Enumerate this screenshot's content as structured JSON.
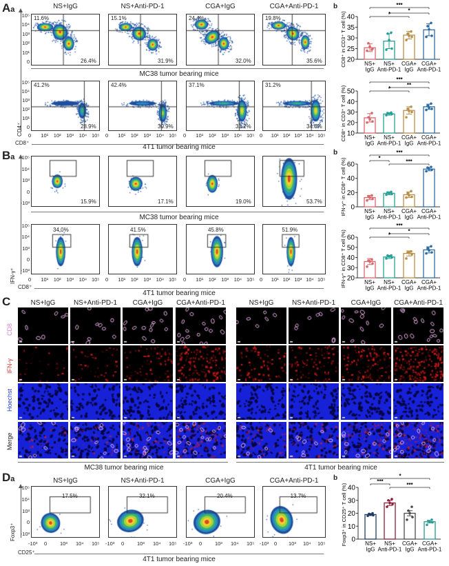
{
  "groups": [
    "NS+IgG",
    "NS+Anti-PD-1",
    "CGA+IgG",
    "CGA+Anti-PD-1"
  ],
  "panel_A": {
    "label": "A",
    "sub": "a",
    "b_label": "b",
    "y_axis": "CD4⁺",
    "x_axis": "CD8⁺",
    "y_ticks": [
      "10⁵",
      "10⁴",
      "10³",
      "10²",
      "10¹",
      "0"
    ],
    "x_ticks": [
      "0",
      "10¹",
      "10²",
      "10³",
      "10⁴",
      "10⁵"
    ],
    "rows": [
      {
        "caption": "MC38 tumor bearing mice",
        "upper_left": [
          "11.6%",
          "15.1%",
          "24.4%",
          "19.8%"
        ],
        "lower_right": [
          "26.4%",
          "31.9%",
          "32.0%",
          "35.6%"
        ]
      },
      {
        "caption": "4T1 tumor bearing mice",
        "upper_left": [
          "41.2%",
          "42.4%",
          "37.1%",
          "31.2%"
        ],
        "lower_right": [
          "28.9%",
          "30.9%",
          "33.2%",
          "34.6%"
        ]
      }
    ]
  },
  "panel_B": {
    "label": "B",
    "sub": "a",
    "b_label": "b",
    "y_axis": "IFN-γ⁺",
    "x_axis": "CD8⁺",
    "y_ticks": [
      "10⁵",
      "10⁴",
      "10³",
      "0",
      "-10³"
    ],
    "x_ticks": [
      "0",
      "10¹",
      "10²",
      "10³",
      "10⁴",
      "10⁵"
    ],
    "rows": [
      {
        "caption": "MC38 tumor bearing mice",
        "gate": [
          "15.9%",
          "17.1%",
          "19.0%",
          "53.7%"
        ]
      },
      {
        "caption": "4T1 tumor bearing mice",
        "gate": [
          "34.0%",
          "41.5%",
          "45.8%",
          "51.9%"
        ]
      }
    ]
  },
  "panel_C": {
    "label": "C",
    "rows": [
      "CD8",
      "IFN-γ",
      "Hoechst",
      "Merge"
    ],
    "row_colors": [
      "#d87fd0",
      "#d23a32",
      "#2b3fd6",
      "#222222"
    ],
    "captions": [
      "MC38 tumor bearing mice",
      "4T1 tumor bearing mice"
    ]
  },
  "panel_D": {
    "label": "D",
    "sub": "a",
    "b_label": "b",
    "y_axis": "Foxp3⁺",
    "x_axis": "CD25⁺",
    "y_ticks": [
      "10⁵",
      "10⁴",
      "10³",
      "0",
      "-10³"
    ],
    "x_ticks": [
      "-10³",
      "0",
      "10³",
      "10⁴",
      "10⁵"
    ],
    "caption": "4T1 tumor bearing mice",
    "gate": [
      "17.5%",
      "32.1%",
      "20.4%",
      "13.7%"
    ]
  },
  "chart_data": [
    {
      "type": "bar",
      "panel": "Ab-MC38",
      "ylabel": "CD8⁺ in CD3⁺ T cell (%)",
      "ylim": [
        20,
        40
      ],
      "yticks": [
        "20",
        "25",
        "30",
        "35",
        "40"
      ],
      "categories": [
        [
          "NS+",
          "IgG"
        ],
        [
          "NS+",
          "Anti-PD-1"
        ],
        [
          "CGA+",
          "IgG"
        ],
        [
          "CGA+",
          "Anti-PD-1"
        ]
      ],
      "colors": [
        "#d9676c",
        "#27a096",
        "#b98f47",
        "#2c6ca3"
      ],
      "values": [
        25.4,
        28.5,
        31.3,
        33.8
      ],
      "errors": [
        1.8,
        3.5,
        1.8,
        2.8
      ],
      "points": [
        [
          24,
          25,
          26,
          27.5,
          24.5
        ],
        [
          24.5,
          25,
          29,
          32,
          32.5
        ],
        [
          29,
          30.5,
          31,
          32,
          33
        ],
        [
          30.5,
          31,
          34,
          35.5,
          37
        ]
      ],
      "significance": [
        {
          "from": 0,
          "to": 3,
          "label": "***"
        },
        {
          "from": 1,
          "to": 3,
          "label": "*"
        },
        {
          "from": 0,
          "to": 2,
          "label": "*"
        }
      ]
    },
    {
      "type": "bar",
      "panel": "Ab-4T1",
      "ylabel": "CD8⁺ in CD3⁺ T cell (%)",
      "ylim": [
        10,
        50
      ],
      "yticks": [
        "10",
        "20",
        "30",
        "40",
        "50"
      ],
      "categories": [
        [
          "NS+",
          "IgG"
        ],
        [
          "NS+",
          "Anti-PD-1"
        ],
        [
          "CGA+",
          "IgG"
        ],
        [
          "CGA+",
          "Anti-PD-1"
        ]
      ],
      "colors": [
        "#d9676c",
        "#27a096",
        "#b98f47",
        "#2c6ca3"
      ],
      "values": [
        24.5,
        28.2,
        31.5,
        35.0
      ],
      "errors": [
        4,
        1.2,
        3.5,
        2.5
      ],
      "points": [
        [
          20,
          21,
          23,
          25,
          29
        ],
        [
          27,
          28,
          28.5,
          29,
          29.5
        ],
        [
          25,
          30,
          31,
          33,
          35
        ],
        [
          32,
          33,
          34,
          36,
          38
        ]
      ],
      "significance": [
        {
          "from": 0,
          "to": 3,
          "label": "***"
        },
        {
          "from": 1,
          "to": 3,
          "label": "**"
        },
        {
          "from": 0,
          "to": 2,
          "label": "*"
        }
      ]
    },
    {
      "type": "bar",
      "panel": "Bb-MC38",
      "ylabel": "IFN-γ⁺ in CD8⁺ T cell (%)",
      "ylim": [
        0,
        60
      ],
      "yticks": [
        "0",
        "20",
        "40",
        "60"
      ],
      "categories": [
        [
          "NS+",
          "IgG"
        ],
        [
          "NS+",
          "Anti-PD-1"
        ],
        [
          "CGA+",
          "IgG"
        ],
        [
          "CGA+",
          "Anti-PD-1"
        ]
      ],
      "colors": [
        "#d9676c",
        "#27a096",
        "#b98f47",
        "#2c6ca3"
      ],
      "values": [
        13,
        19,
        17,
        53
      ],
      "errors": [
        3,
        2,
        4,
        2.5
      ],
      "points": [
        [
          9,
          11,
          13,
          15,
          16
        ],
        [
          17,
          18,
          19,
          20,
          21
        ],
        [
          13,
          14,
          16,
          19,
          22
        ],
        [
          50,
          52,
          53,
          55,
          56
        ]
      ],
      "significance": [
        {
          "from": 0,
          "to": 3,
          "label": "***"
        },
        {
          "from": 0,
          "to": 1,
          "label": "*"
        },
        {
          "from": 1,
          "to": 3,
          "label": "***"
        }
      ]
    },
    {
      "type": "bar",
      "panel": "Bb-4T1",
      "ylabel": "IFN-γ⁺ in CD8⁺ T cell (%)",
      "ylim": [
        20,
        60
      ],
      "yticks": [
        "20",
        "30",
        "40",
        "50",
        "60"
      ],
      "categories": [
        [
          "NS+",
          "IgG"
        ],
        [
          "NS+",
          "Anti-PD-1"
        ],
        [
          "CGA+",
          "IgG"
        ],
        [
          "CGA+",
          "Anti-PD-1"
        ]
      ],
      "colors": [
        "#d9676c",
        "#27a096",
        "#b98f47",
        "#2c6ca3"
      ],
      "values": [
        36,
        40.5,
        44,
        47.5
      ],
      "errors": [
        3,
        1.5,
        2.5,
        3
      ],
      "points": [
        [
          31,
          34,
          36,
          37,
          38
        ],
        [
          39,
          40,
          41,
          42,
          42
        ],
        [
          39,
          43,
          45,
          45,
          46
        ],
        [
          44,
          45,
          47,
          49,
          51
        ]
      ],
      "significance": [
        {
          "from": 0,
          "to": 3,
          "label": "***"
        },
        {
          "from": 1,
          "to": 3,
          "label": "*"
        },
        {
          "from": 0,
          "to": 2,
          "label": "*"
        }
      ]
    },
    {
      "type": "bar",
      "panel": "Db-4T1",
      "ylabel": "Foxp3⁺ in CD25⁺ T cell (%)",
      "ylim": [
        0,
        40
      ],
      "yticks": [
        "0",
        "10",
        "20",
        "30",
        "40"
      ],
      "categories": [
        [
          "NS+",
          "IgG"
        ],
        [
          "NS+",
          "Anti-PD-1"
        ],
        [
          "CGA+",
          "IgG"
        ],
        [
          "CGA+",
          "Anti-PD-1"
        ]
      ],
      "colors": [
        "#1f3a60",
        "#8f1d3a",
        "#4a4a4a",
        "#2a9a94"
      ],
      "values": [
        19,
        28,
        20,
        13.5
      ],
      "errors": [
        0.8,
        2,
        2,
        1
      ],
      "points": [
        [
          18,
          18.5,
          19,
          19.5,
          20
        ],
        [
          25,
          27,
          28,
          30,
          31
        ],
        [
          15,
          17,
          20,
          22,
          25
        ],
        [
          11,
          13,
          13.5,
          14,
          15
        ]
      ],
      "significance": [
        {
          "from": 0,
          "to": 3,
          "label": "*"
        },
        {
          "from": 0,
          "to": 1,
          "label": "***"
        },
        {
          "from": 1,
          "to": 3,
          "label": "***"
        }
      ]
    }
  ]
}
